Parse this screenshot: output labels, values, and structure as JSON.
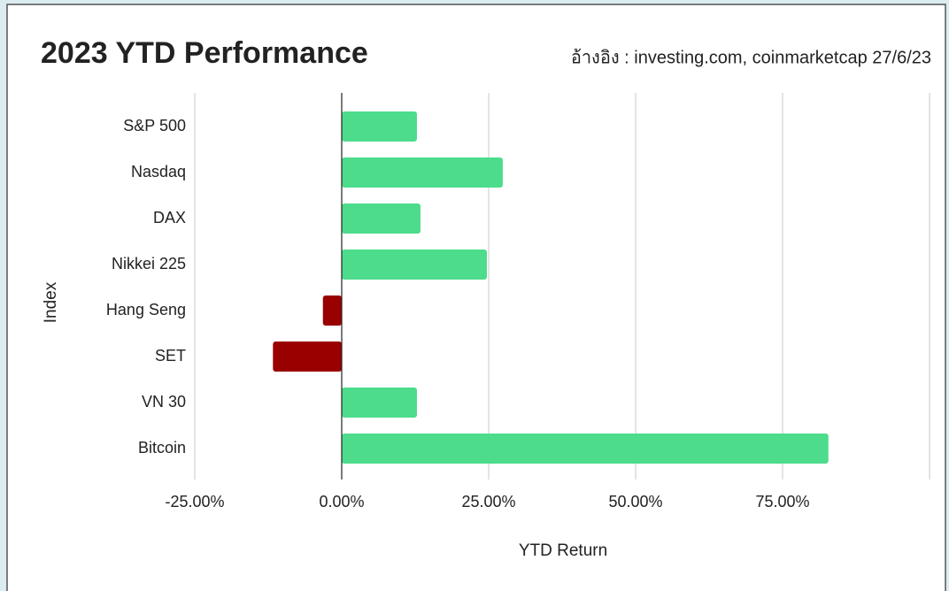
{
  "chart_data": {
    "type": "barh",
    "title": "2023 YTD Performance",
    "subtitle": "อ้างอิง : investing.com, coinmarketcap 27/6/23",
    "xlabel": "YTD Return",
    "ylabel": "Index",
    "categories": [
      "S&P 500",
      "Nasdaq",
      "DAX",
      "Nikkei 225",
      "Hang Seng",
      "SET",
      "VN 30",
      "Bitcoin"
    ],
    "series": [
      {
        "color": "#4cdc8c",
        "negative_color": "#990000",
        "values": [
          12.8,
          27.4,
          13.4,
          24.7,
          -3.2,
          -11.7,
          12.8,
          82.8
        ]
      }
    ],
    "xlim": [
      -25,
      100
    ],
    "xticks": [
      {
        "value": -25,
        "label": "-25.00%"
      },
      {
        "value": 0,
        "label": "0.00%"
      },
      {
        "value": 25,
        "label": "25.00%"
      },
      {
        "value": 50,
        "label": "50.00%"
      },
      {
        "value": 75,
        "label": "75.00%"
      }
    ],
    "grid": true
  }
}
